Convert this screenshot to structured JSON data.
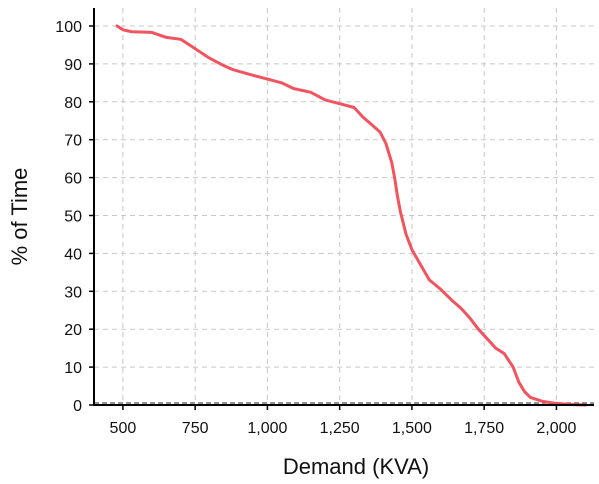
{
  "chart_data": {
    "type": "line",
    "title": "",
    "xlabel": "Demand (KVA)",
    "ylabel": "% of Time",
    "xlim": [
      400,
      2130
    ],
    "ylim": [
      0,
      105
    ],
    "x_ticks": [
      500,
      750,
      1000,
      1250,
      1500,
      1750,
      2000
    ],
    "x_tick_labels": [
      "500",
      "750",
      "1,000",
      "1,250",
      "1,500",
      "1,750",
      "2,000"
    ],
    "y_ticks": [
      0,
      10,
      20,
      30,
      40,
      50,
      60,
      70,
      80,
      90,
      100
    ],
    "y_tick_labels": [
      "0",
      "10",
      "20",
      "30",
      "40",
      "50",
      "60",
      "70",
      "80",
      "90",
      "100"
    ],
    "grid": true,
    "reference_line_y": 0,
    "series": [
      {
        "color": "#f0555f",
        "x": [
          480,
          500,
          530,
          600,
          650,
          700,
          730,
          770,
          800,
          850,
          880,
          950,
          1000,
          1050,
          1090,
          1150,
          1200,
          1250,
          1300,
          1330,
          1360,
          1390,
          1410,
          1430,
          1440,
          1450,
          1460,
          1480,
          1500,
          1530,
          1560,
          1600,
          1640,
          1670,
          1700,
          1730,
          1760,
          1790,
          1820,
          1850,
          1870,
          1890,
          1910,
          1950,
          1990,
          2020,
          2060,
          2100
        ],
        "y": [
          100,
          99,
          98.5,
          98.3,
          97,
          96.5,
          95,
          93,
          91.5,
          89.5,
          88.5,
          87,
          86,
          85,
          83.5,
          82.5,
          80.5,
          79.5,
          78.5,
          76,
          74,
          72,
          69,
          64,
          60,
          55,
          51,
          45,
          41,
          37,
          33,
          30.5,
          27.5,
          25.5,
          23,
          20,
          17.5,
          15,
          13.5,
          10,
          6,
          3.5,
          2,
          1,
          0.5,
          0.3,
          0.1,
          0
        ]
      }
    ]
  }
}
